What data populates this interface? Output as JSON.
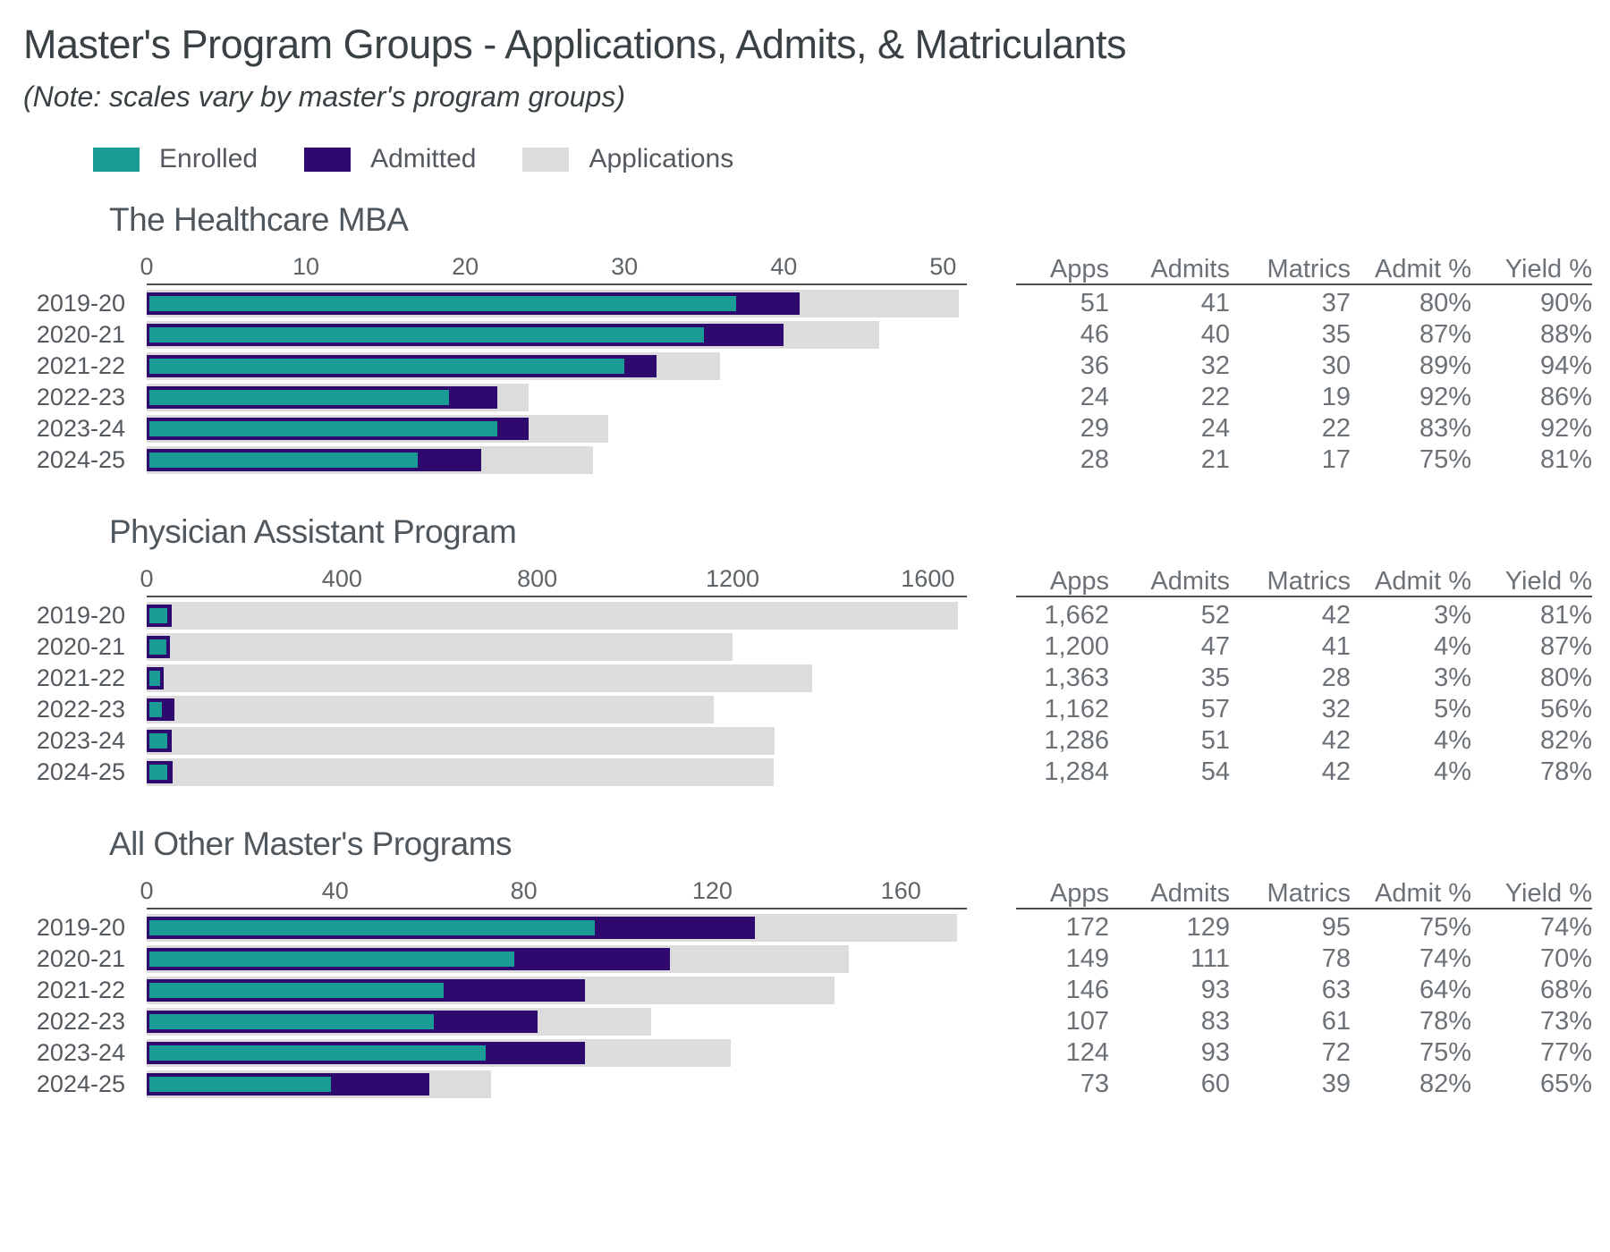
{
  "header": {
    "title": "Master's Program Groups - Applications, Admits, & Matriculants",
    "note": "(Note: scales vary by master's program groups)"
  },
  "colors": {
    "enrolled": "#1A9B94",
    "admitted": "#2E0A6E",
    "applications": "#DCDCDC",
    "axis_line": "#4E4E4E",
    "text_dark": "#3A4145",
    "text_gray": "#53595E",
    "table_text": "#6B7176"
  },
  "legend": [
    {
      "label": "Enrolled",
      "color": "#1A9B94"
    },
    {
      "label": "Admitted",
      "color": "#2E0A6E"
    },
    {
      "label": "Applications",
      "color": "#DCDCDC"
    }
  ],
  "table_headers": [
    "Apps",
    "Admits",
    "Matrics",
    "Admit %",
    "Yield %"
  ],
  "chart_data": [
    {
      "type": "bar",
      "title": "The Healthcare MBA",
      "orientation": "horizontal",
      "categories": [
        "2019-20",
        "2020-21",
        "2021-22",
        "2022-23",
        "2023-24",
        "2024-25"
      ],
      "series": [
        {
          "name": "Applications",
          "values": [
            51,
            46,
            36,
            24,
            29,
            28
          ]
        },
        {
          "name": "Admitted",
          "values": [
            41,
            40,
            32,
            22,
            24,
            21
          ]
        },
        {
          "name": "Enrolled",
          "values": [
            37,
            35,
            30,
            19,
            22,
            17
          ]
        }
      ],
      "xticks": [
        0,
        10,
        20,
        30,
        40,
        50
      ],
      "xlim": [
        0,
        51.5
      ],
      "table_rows": [
        [
          "51",
          "41",
          "37",
          "80%",
          "90%"
        ],
        [
          "46",
          "40",
          "35",
          "87%",
          "88%"
        ],
        [
          "36",
          "32",
          "30",
          "89%",
          "94%"
        ],
        [
          "24",
          "22",
          "19",
          "92%",
          "86%"
        ],
        [
          "29",
          "24",
          "22",
          "83%",
          "92%"
        ],
        [
          "28",
          "21",
          "17",
          "75%",
          "81%"
        ]
      ]
    },
    {
      "type": "bar",
      "title": "Physician Assistant Program",
      "orientation": "horizontal",
      "categories": [
        "2019-20",
        "2020-21",
        "2021-22",
        "2022-23",
        "2023-24",
        "2024-25"
      ],
      "series": [
        {
          "name": "Applications",
          "values": [
            1662,
            1200,
            1363,
            1162,
            1286,
            1284
          ]
        },
        {
          "name": "Admitted",
          "values": [
            52,
            47,
            35,
            57,
            51,
            54
          ]
        },
        {
          "name": "Enrolled",
          "values": [
            42,
            41,
            28,
            32,
            42,
            42
          ]
        }
      ],
      "xticks": [
        0,
        400,
        800,
        1200,
        1600
      ],
      "xlim": [
        0,
        1680
      ],
      "table_rows": [
        [
          "1,662",
          "52",
          "42",
          "3%",
          "81%"
        ],
        [
          "1,200",
          "47",
          "41",
          "4%",
          "87%"
        ],
        [
          "1,363",
          "35",
          "28",
          "3%",
          "80%"
        ],
        [
          "1,162",
          "57",
          "32",
          "5%",
          "56%"
        ],
        [
          "1,286",
          "51",
          "42",
          "4%",
          "82%"
        ],
        [
          "1,284",
          "54",
          "42",
          "4%",
          "78%"
        ]
      ]
    },
    {
      "type": "bar",
      "title": "All Other Master's Programs",
      "orientation": "horizontal",
      "categories": [
        "2019-20",
        "2020-21",
        "2021-22",
        "2022-23",
        "2023-24",
        "2024-25"
      ],
      "series": [
        {
          "name": "Applications",
          "values": [
            172,
            149,
            146,
            107,
            124,
            73
          ]
        },
        {
          "name": "Admitted",
          "values": [
            129,
            111,
            93,
            83,
            93,
            60
          ]
        },
        {
          "name": "Enrolled",
          "values": [
            95,
            78,
            63,
            61,
            72,
            39
          ]
        }
      ],
      "xticks": [
        0,
        40,
        80,
        120,
        160
      ],
      "xlim": [
        0,
        174
      ],
      "table_rows": [
        [
          "172",
          "129",
          "95",
          "75%",
          "74%"
        ],
        [
          "149",
          "111",
          "78",
          "74%",
          "70%"
        ],
        [
          "146",
          "93",
          "63",
          "64%",
          "68%"
        ],
        [
          "107",
          "83",
          "61",
          "78%",
          "73%"
        ],
        [
          "124",
          "93",
          "72",
          "75%",
          "77%"
        ],
        [
          "73",
          "60",
          "39",
          "82%",
          "65%"
        ]
      ]
    }
  ]
}
